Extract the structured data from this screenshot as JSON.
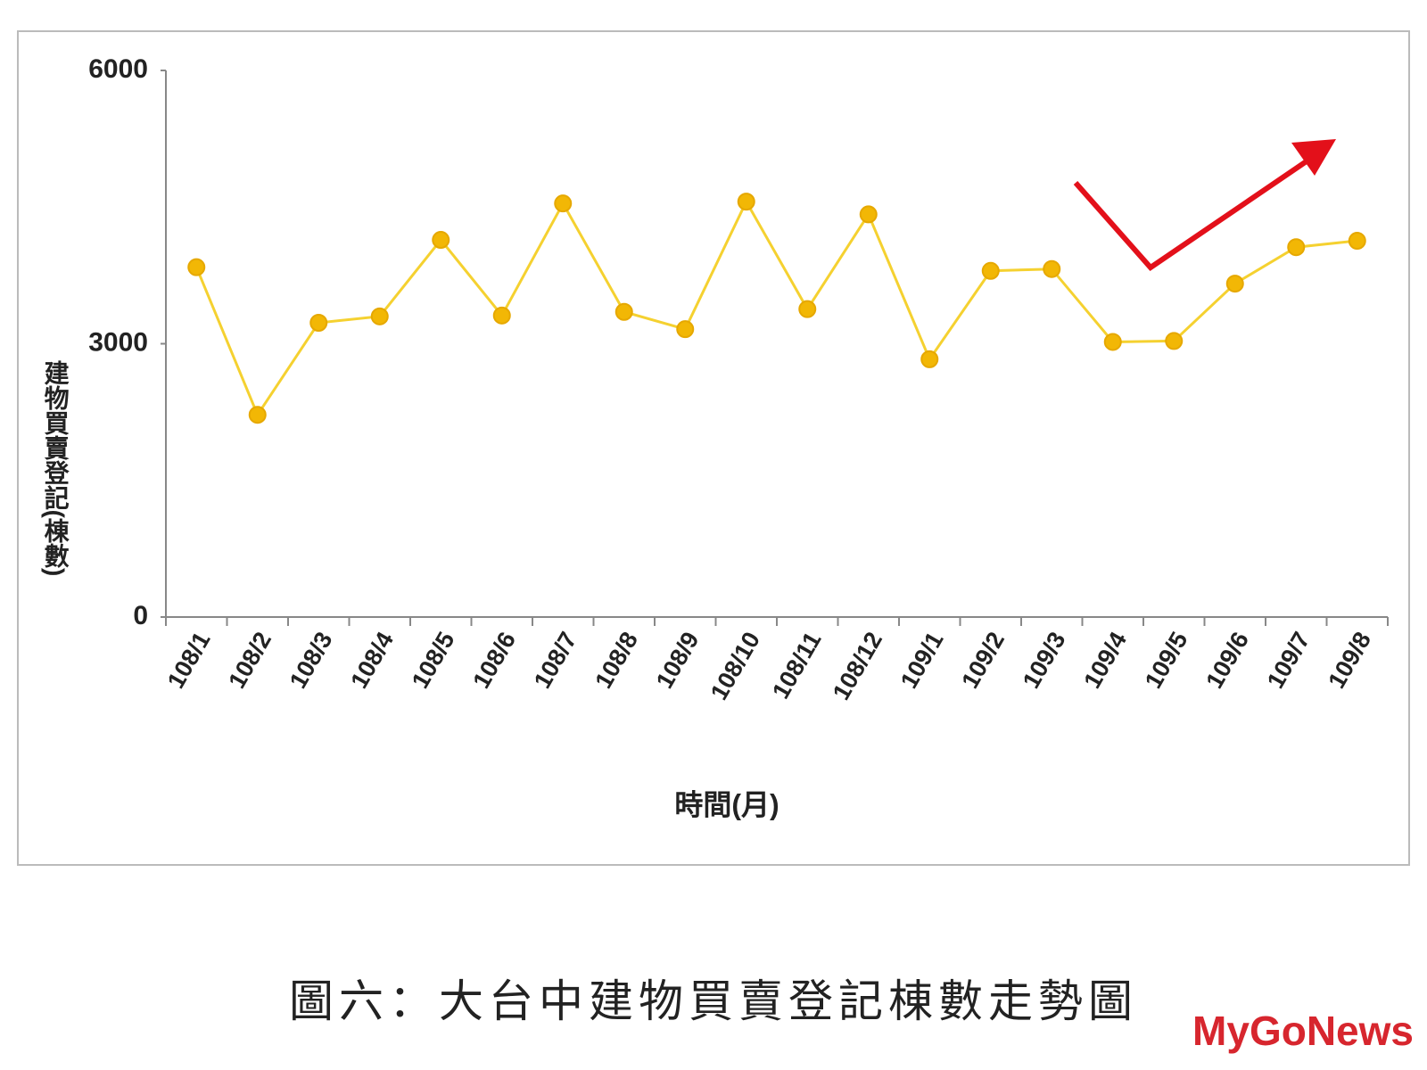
{
  "chart_data": {
    "type": "line",
    "y_label": "建物買賣登記(棟數)",
    "x_label": "時間(月)",
    "categories": [
      "108/1",
      "108/2",
      "108/3",
      "108/4",
      "108/5",
      "108/6",
      "108/7",
      "108/8",
      "108/9",
      "108/10",
      "108/11",
      "108/12",
      "109/1",
      "109/2",
      "109/3",
      "109/4",
      "109/5",
      "109/6",
      "109/7",
      "109/8"
    ],
    "values": [
      3840,
      2220,
      3230,
      3300,
      4140,
      3310,
      4540,
      3350,
      3160,
      4560,
      3380,
      4420,
      2830,
      3800,
      3820,
      3020,
      3030,
      3660,
      4060,
      4130
    ],
    "color": "#f5d130",
    "marker_color": "#f2b705",
    "ylim": [
      0,
      6000
    ],
    "yticks": [
      0,
      3000,
      6000
    ]
  },
  "caption": "圖六：大台中建物買賣登記棟數走勢圖",
  "watermark": "MyGoNews"
}
